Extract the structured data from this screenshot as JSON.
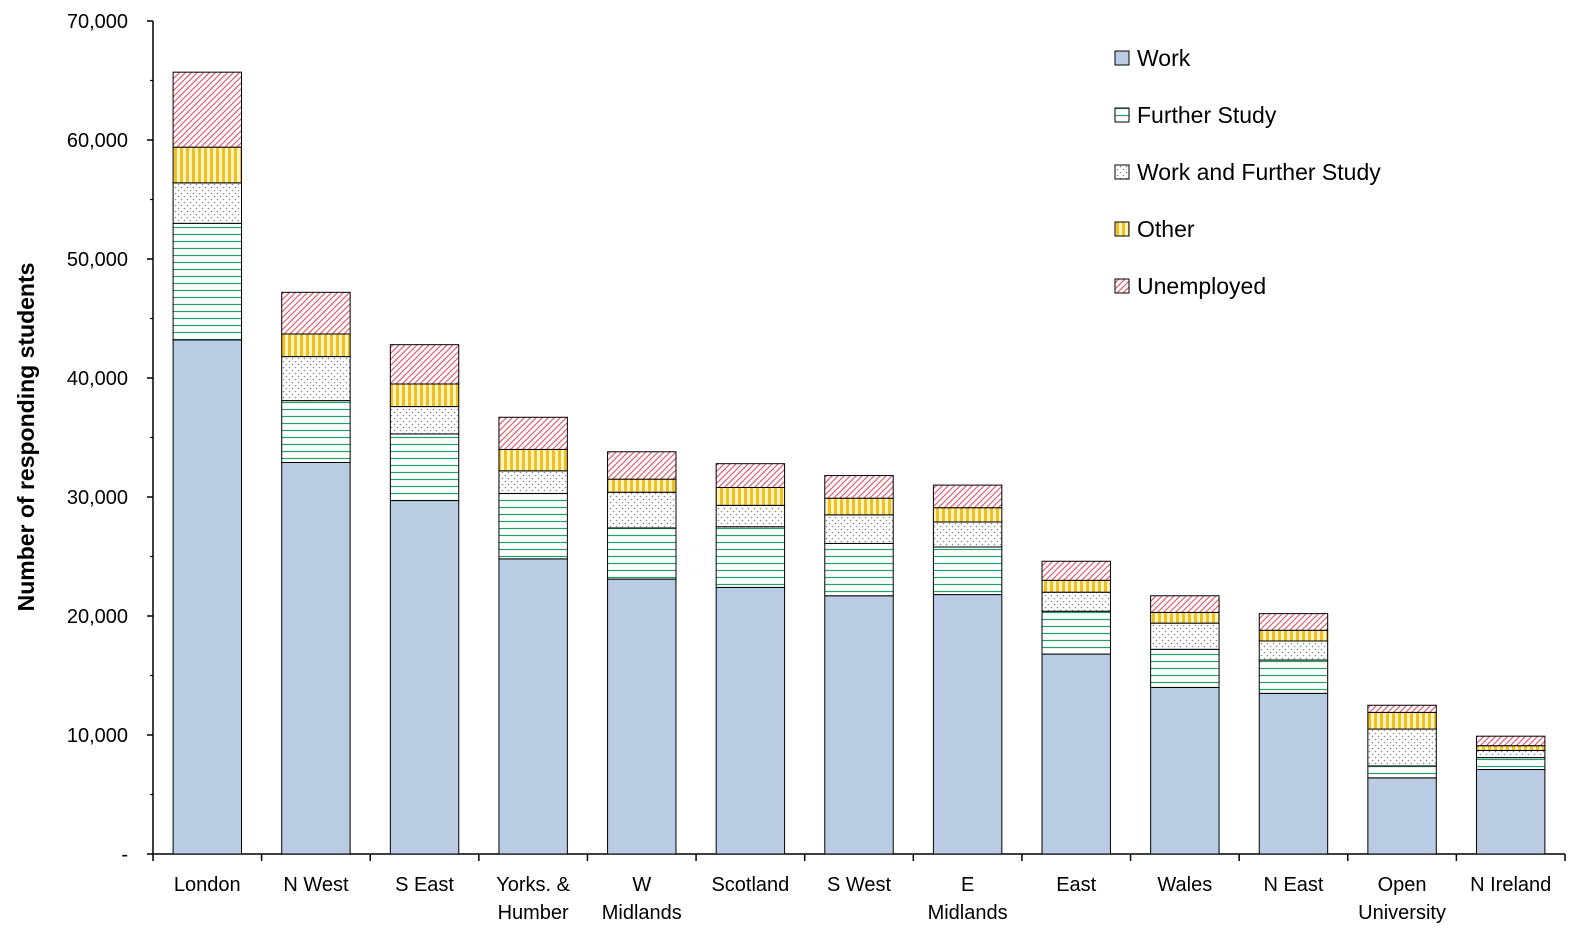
{
  "chart_data": {
    "type": "bar",
    "stacked": true,
    "ylabel": "Number of responding students",
    "ylim": [
      0,
      70000
    ],
    "yticks": [
      "-",
      "10,000",
      "20,000",
      "30,000",
      "40,000",
      "50,000",
      "60,000",
      "70,000"
    ],
    "legend_position": "top-right",
    "grid": false,
    "categories": [
      [
        "London"
      ],
      [
        "N West"
      ],
      [
        "S East"
      ],
      [
        "Yorks. &",
        "Humber"
      ],
      [
        "W",
        "Midlands"
      ],
      [
        "Scotland"
      ],
      [
        "S West"
      ],
      [
        "E",
        "Midlands"
      ],
      [
        "East"
      ],
      [
        "Wales"
      ],
      [
        "N East"
      ],
      [
        "Open",
        "University"
      ],
      [
        "N Ireland"
      ]
    ],
    "series": [
      {
        "name": "Work",
        "color": "#b9cce4",
        "pattern": "solid",
        "values": [
          43200,
          32900,
          29700,
          24800,
          23100,
          22400,
          21700,
          21800,
          16800,
          14000,
          13500,
          6400,
          7100
        ]
      },
      {
        "name": "Further Study",
        "color": "#21a366",
        "pattern": "horizontal-lines",
        "values": [
          9800,
          5200,
          5600,
          5500,
          4300,
          5100,
          4400,
          4000,
          3600,
          3200,
          2800,
          1000,
          1000
        ]
      },
      {
        "name": "Work and Further Study",
        "color": "#808080",
        "pattern": "dots",
        "values": [
          3400,
          3700,
          2300,
          1900,
          3000,
          1800,
          2400,
          2100,
          1600,
          2200,
          1600,
          3100,
          600
        ]
      },
      {
        "name": "Other",
        "color": "#f0c020",
        "pattern": "vertical-lines",
        "values": [
          3000,
          1900,
          1900,
          1800,
          1100,
          1500,
          1400,
          1200,
          1000,
          900,
          900,
          1400,
          400
        ]
      },
      {
        "name": "Unemployed",
        "color": "#e06070",
        "pattern": "diagonal-lines",
        "values": [
          6300,
          3500,
          3300,
          2700,
          2300,
          2000,
          1900,
          1900,
          1600,
          1400,
          1400,
          600,
          800
        ]
      }
    ]
  }
}
